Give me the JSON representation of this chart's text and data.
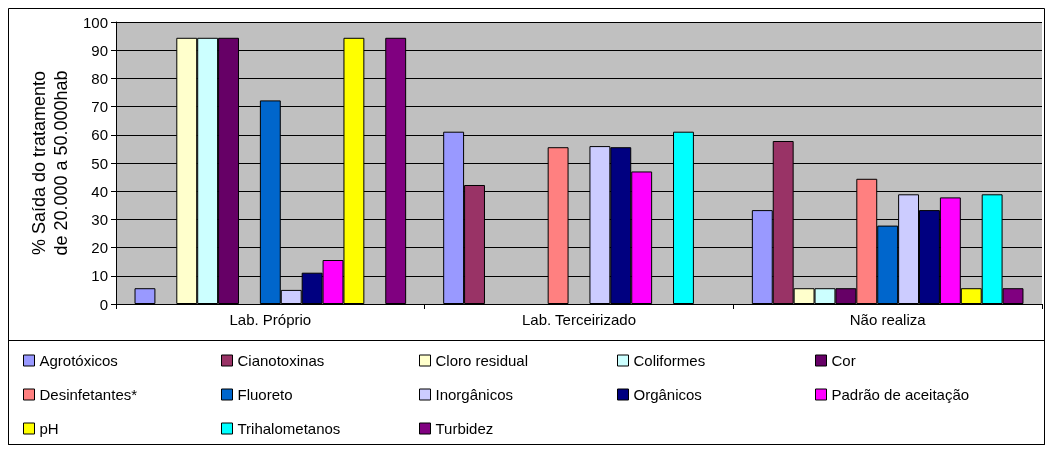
{
  "chart_data": {
    "type": "bar",
    "ylabel": "% Saída do tratamento\nde 20.000 a 50.000hab",
    "categories": [
      "Lab. Próprio",
      "Lab. Terceirizado",
      "Não realiza"
    ],
    "ylim": [
      0,
      100
    ],
    "yticks": [
      0,
      10,
      20,
      30,
      40,
      50,
      60,
      70,
      80,
      90,
      100
    ],
    "grid": "y",
    "legend": "bottom",
    "series": [
      {
        "name": "Agrotóxicos",
        "color": "#9999ff",
        "values": [
          5.6,
          61.1,
          33.3
        ]
      },
      {
        "name": "Cianotoxinas",
        "color": "#993366",
        "values": [
          null,
          42.2,
          57.8
        ]
      },
      {
        "name": "Cloro residual",
        "color": "#ffffcc",
        "values": [
          94.4,
          null,
          5.6
        ]
      },
      {
        "name": "Coliformes",
        "color": "#ccffff",
        "values": [
          94.4,
          null,
          5.6
        ]
      },
      {
        "name": "Cor",
        "color": "#660066",
        "values": [
          94.4,
          null,
          5.6
        ]
      },
      {
        "name": "Desinfetantes*",
        "color": "#ff8080",
        "values": [
          null,
          55.6,
          44.4
        ]
      },
      {
        "name": "Fluoreto",
        "color": "#0066cc",
        "values": [
          72.2,
          null,
          27.8
        ]
      },
      {
        "name": "Inorgânicos",
        "color": "#ccccff",
        "values": [
          5,
          56,
          38.9
        ]
      },
      {
        "name": "Orgânicos",
        "color": "#000080",
        "values": [
          11.1,
          55.6,
          33.3
        ]
      },
      {
        "name": "Padrão de aceitação",
        "color": "#ff00ff",
        "values": [
          15.6,
          47,
          37.8
        ]
      },
      {
        "name": "pH",
        "color": "#ffff00",
        "values": [
          94.4,
          null,
          5.6
        ]
      },
      {
        "name": "Trihalometanos",
        "color": "#00ffff",
        "values": [
          null,
          61.1,
          38.9
        ]
      },
      {
        "name": "Turbidez",
        "color": "#800080",
        "values": [
          94.4,
          null,
          5.6
        ]
      }
    ]
  }
}
